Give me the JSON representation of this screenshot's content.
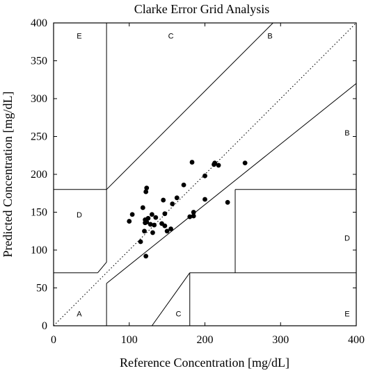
{
  "chart_data": {
    "type": "scatter",
    "title": "Clarke Error Grid Analysis",
    "xlabel": "Reference Concentration [mg/dL]",
    "ylabel": "Predicted Concentration [mg/dL]",
    "xlim": [
      0,
      400
    ],
    "ylim": [
      0,
      400
    ],
    "xticks": [
      "0",
      "100",
      "200",
      "300",
      "400"
    ],
    "yticks": [
      "0",
      "50",
      "100",
      "150",
      "200",
      "250",
      "300",
      "350",
      "400"
    ],
    "grid": false,
    "identity_line": true,
    "regions": [
      {
        "label": "A",
        "x": 34,
        "y": 16
      },
      {
        "label": "B",
        "x": 286,
        "y": 383
      },
      {
        "label": "B",
        "x": 388,
        "y": 255
      },
      {
        "label": "C",
        "x": 155,
        "y": 383
      },
      {
        "label": "C",
        "x": 165,
        "y": 16
      },
      {
        "label": "D",
        "x": 34,
        "y": 147
      },
      {
        "label": "D",
        "x": 388,
        "y": 116
      },
      {
        "label": "E",
        "x": 34,
        "y": 383
      },
      {
        "label": "E",
        "x": 388,
        "y": 16
      }
    ],
    "zone_lines": [
      [
        [
          0,
          70
        ],
        [
          58.33,
          70
        ]
      ],
      [
        [
          58.33,
          70
        ],
        [
          70,
          84
        ]
      ],
      [
        [
          70,
          84
        ],
        [
          70,
          400
        ]
      ],
      [
        [
          70,
          180
        ],
        [
          0,
          180
        ]
      ],
      [
        [
          70,
          180
        ],
        [
          290,
          400
        ]
      ],
      [
        [
          70,
          56
        ],
        [
          70,
          0
        ]
      ],
      [
        [
          70,
          56
        ],
        [
          400,
          320
        ]
      ],
      [
        [
          130,
          0
        ],
        [
          180,
          70
        ]
      ],
      [
        [
          180,
          70
        ],
        [
          180,
          0
        ]
      ],
      [
        [
          180,
          70
        ],
        [
          400,
          70
        ]
      ],
      [
        [
          240,
          70
        ],
        [
          240,
          180
        ]
      ],
      [
        [
          240,
          180
        ],
        [
          400,
          180
        ]
      ]
    ],
    "series": [
      {
        "x": [
          100,
          104,
          115,
          118,
          120,
          121,
          121,
          122,
          122,
          123,
          123,
          125,
          128,
          130,
          131,
          133,
          135,
          143,
          145,
          147,
          147,
          150,
          155,
          157,
          163,
          172,
          180,
          183,
          185,
          185,
          200,
          200,
          212,
          213,
          218,
          230,
          253
        ],
        "y": [
          138,
          147,
          111,
          156,
          125,
          136,
          140,
          92,
          177,
          182,
          137,
          142,
          134,
          147,
          123,
          133,
          143,
          135,
          166,
          132,
          148,
          125,
          128,
          161,
          169,
          186,
          144,
          216,
          145,
          150,
          198,
          167,
          213,
          215,
          212,
          163,
          215
        ]
      }
    ]
  }
}
